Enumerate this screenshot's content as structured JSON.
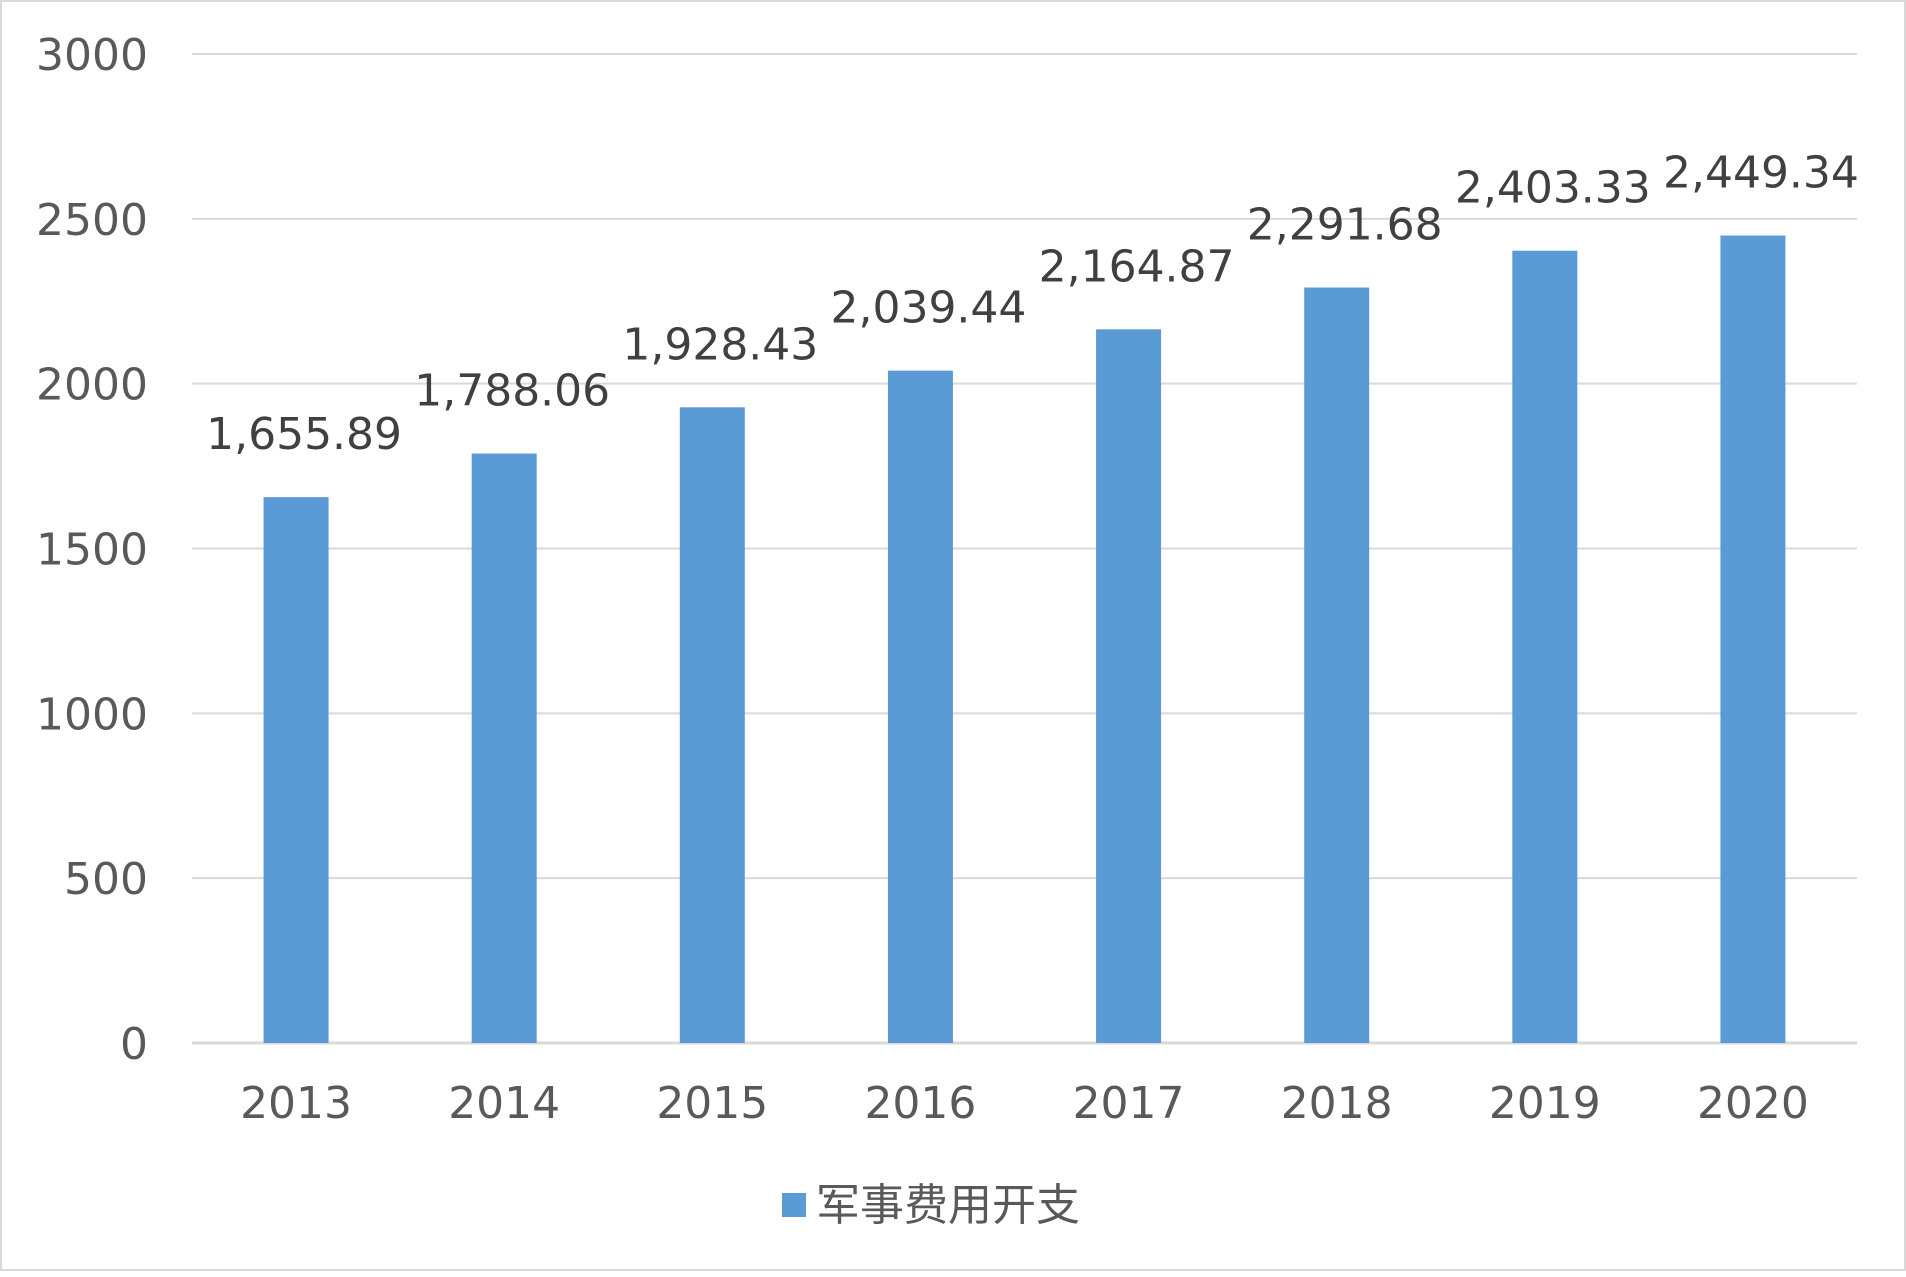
{
  "chart_data": {
    "type": "bar",
    "title": "",
    "xlabel": "",
    "ylabel": "",
    "categories": [
      "2013",
      "2014",
      "2015",
      "2016",
      "2017",
      "2018",
      "2019",
      "2020"
    ],
    "series": [
      {
        "name": "军事费用开支",
        "values": [
          1655.89,
          1788.06,
          1928.43,
          2039.44,
          2164.87,
          2291.68,
          2403.33,
          2449.34
        ],
        "data_labels": [
          "1,655.89",
          "1,788.06",
          "1,928.43",
          "2,039.44",
          "2,164.87",
          "2,291.68",
          "2,403.33",
          "2,449.34"
        ]
      }
    ],
    "ylim": [
      0,
      3000
    ],
    "y_ticks": [
      "0",
      "500",
      "1000",
      "1500",
      "2000",
      "2500",
      "3000"
    ],
    "grid": true,
    "legend_position": "bottom",
    "colors": {
      "bar": "#5b9bd5",
      "grid": "#d9d9d9",
      "axis_text": "#595959",
      "label_text": "#404040",
      "border": "#d9d9d9"
    }
  }
}
